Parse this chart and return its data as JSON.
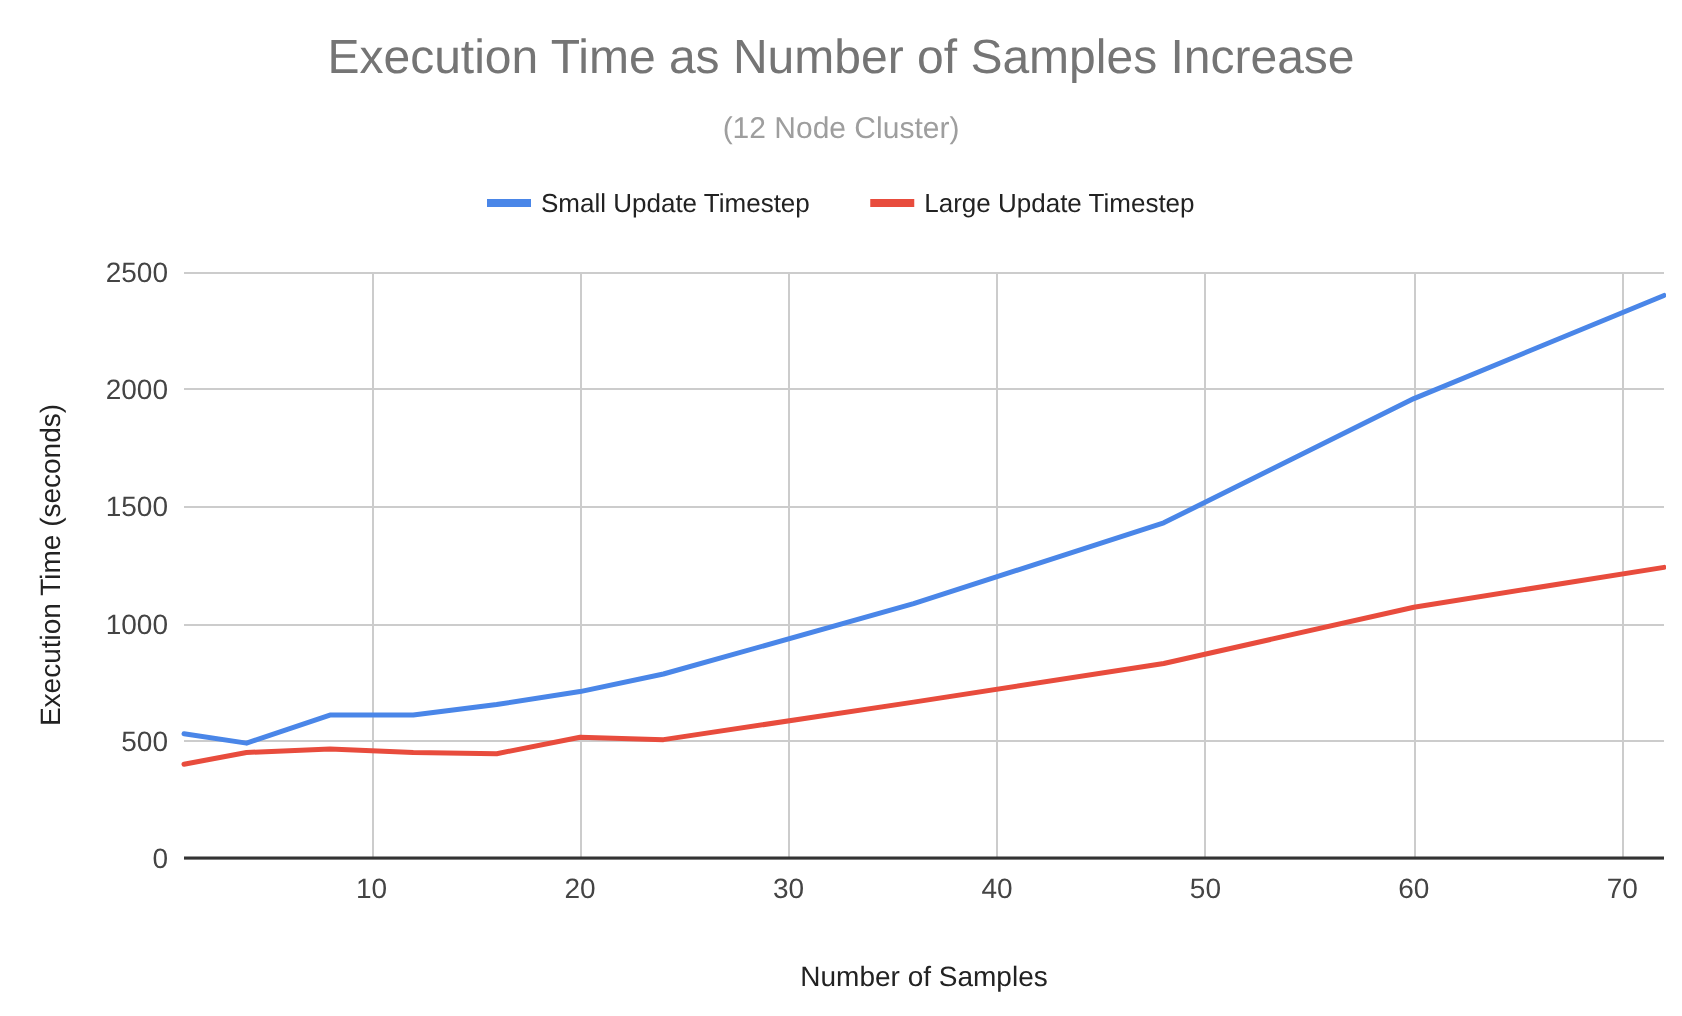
{
  "chart_data": {
    "type": "line",
    "title": "Execution Time as Number of Samples Increase",
    "subtitle": "(12 Node Cluster)",
    "xlabel": "Number of Samples",
    "ylabel": "Execution Time (seconds)",
    "x": [
      1,
      4,
      8,
      12,
      16,
      20,
      24,
      36,
      48,
      60,
      72
    ],
    "series": [
      {
        "name": "Small Update Timestep",
        "color": "#4a86e8",
        "values": [
          530,
          490,
          610,
          610,
          655,
          710,
          785,
          1085,
          1430,
          1960,
          2400
        ]
      },
      {
        "name": "Large Update Timestep",
        "color": "#e84c3d",
        "values": [
          400,
          450,
          465,
          450,
          445,
          515,
          505,
          665,
          830,
          1070,
          1240
        ]
      }
    ],
    "xlim": [
      1,
      72
    ],
    "xticks": [
      10,
      20,
      30,
      40,
      50,
      60,
      70
    ],
    "ylim": [
      0,
      2500
    ],
    "yticks": [
      0,
      500,
      1000,
      1500,
      2000,
      2500
    ],
    "grid": true,
    "legend": "top",
    "marker": "none",
    "line_style": "solid"
  }
}
